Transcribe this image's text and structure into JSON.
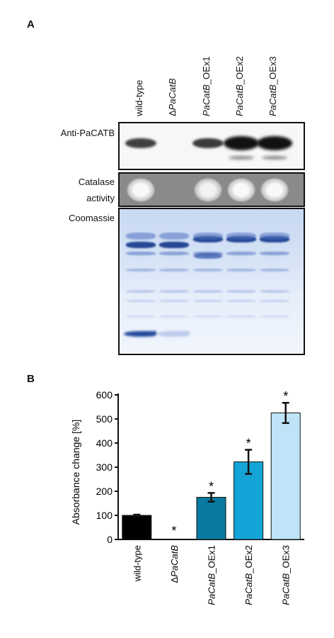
{
  "panel_a": {
    "letter": "A",
    "lanes": [
      {
        "prefix": "",
        "italic": "",
        "suffix": "wild-type"
      },
      {
        "prefix": "Δ",
        "italic": "PaCatB",
        "suffix": ""
      },
      {
        "prefix": "",
        "italic": "PaCatB",
        "suffix": "_OEx1"
      },
      {
        "prefix": "",
        "italic": "PaCatB",
        "suffix": "_OEx2"
      },
      {
        "prefix": "",
        "italic": "PaCatB",
        "suffix": "_OEx3"
      }
    ],
    "rows": {
      "western": "Anti-PaCATB",
      "catalase_line1": "Catalase",
      "catalase_line2": "activity",
      "coomassie": "Coomassie"
    },
    "western_intensity": [
      0.55,
      0.0,
      0.6,
      1.0,
      1.0
    ],
    "catalase_intensity": [
      0.95,
      0.0,
      0.9,
      0.95,
      0.95
    ]
  },
  "panel_b": {
    "letter": "B",
    "chart_data": {
      "type": "bar",
      "categories": [
        "wild-type",
        "ΔPaCatB",
        "PaCatB_OEx1",
        "PaCatB_OEx2",
        "PaCatB_OEx3"
      ],
      "category_parts": [
        {
          "prefix": "",
          "italic": "",
          "suffix": "wild-type"
        },
        {
          "prefix": "Δ",
          "italic": "PaCatB",
          "suffix": ""
        },
        {
          "prefix": "",
          "italic": "PaCatB",
          "suffix": "_OEx1"
        },
        {
          "prefix": "",
          "italic": "PaCatB",
          "suffix": "_OEx2"
        },
        {
          "prefix": "",
          "italic": "PaCatB",
          "suffix": "_OEx3"
        }
      ],
      "values": [
        100,
        0,
        175,
        322,
        525
      ],
      "errors": [
        3,
        0,
        18,
        50,
        42
      ],
      "significance": [
        "",
        "*",
        "*",
        "*",
        "*"
      ],
      "colors": [
        "#000000",
        "#000000",
        "#0a7aa0",
        "#15a4d8",
        "#bfe4f7"
      ],
      "ylabel": "Absorbance change [%]",
      "xlabel": "",
      "ylim": [
        0,
        600
      ],
      "yticks": [
        0,
        100,
        200,
        300,
        400,
        500,
        600
      ],
      "grid": false
    }
  }
}
